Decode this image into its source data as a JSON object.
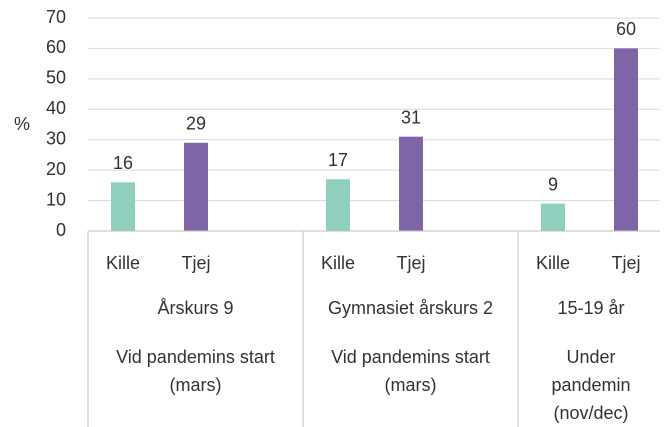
{
  "chart_data": {
    "type": "bar",
    "ylabel": "%",
    "categories": [
      "Årskurs 9",
      "Gymnasiet årskurs 2",
      "15-19 år"
    ],
    "periods": [
      "Vid pandemins start (mars)",
      "Vid pandemins start (mars)",
      "Under pandemin (nov/dec)"
    ],
    "series": [
      {
        "name": "Kille",
        "color": "#8fcfbd",
        "values": [
          16,
          17,
          9
        ]
      },
      {
        "name": "Tjej",
        "color": "#7f65a8",
        "values": [
          29,
          31,
          60
        ]
      }
    ],
    "ylim": [
      0,
      70
    ],
    "yticks": [
      0,
      10,
      20,
      30,
      40,
      50,
      60,
      70
    ],
    "grid": true
  }
}
